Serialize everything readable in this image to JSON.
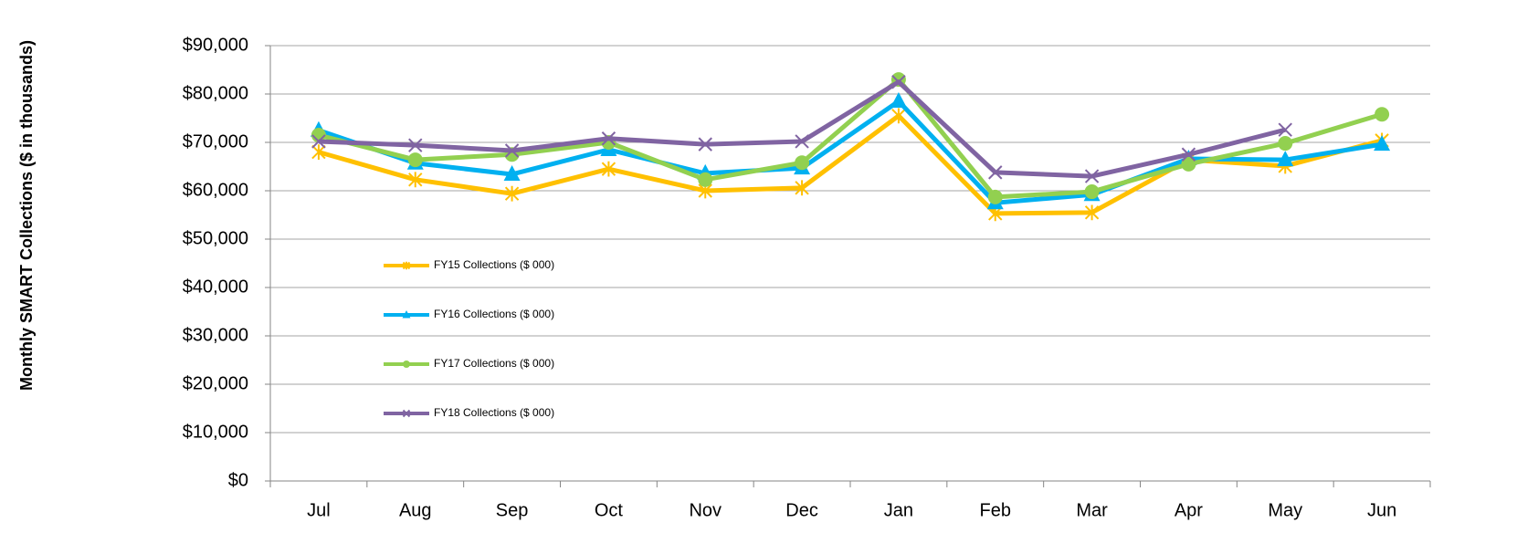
{
  "chart_data": {
    "type": "line",
    "y_axis_label": "Monthly SMART Collections ($ in thousands)",
    "categories": [
      "Jul",
      "Aug",
      "Sep",
      "Oct",
      "Nov",
      "Dec",
      "Jan",
      "Feb",
      "Mar",
      "Apr",
      "May",
      "Jun"
    ],
    "series": [
      {
        "name": "FY15 Collections ($ 000)",
        "color": "#FFC000",
        "marker": "asterisk",
        "values": [
          68000,
          62300,
          59400,
          64500,
          60000,
          60600,
          75500,
          55300,
          55500,
          66400,
          65100,
          70400
        ]
      },
      {
        "name": "FY16 Collections ($ 000)",
        "color": "#00B0F0",
        "marker": "triangle",
        "values": [
          72500,
          65700,
          63400,
          68500,
          63600,
          64700,
          78500,
          57500,
          59200,
          66600,
          66400,
          69600
        ]
      },
      {
        "name": "FY17 Collections ($ 000)",
        "color": "#92D050",
        "marker": "circle",
        "values": [
          71500,
          66400,
          67500,
          70000,
          62300,
          65800,
          83000,
          58700,
          59800,
          65500,
          69800,
          75800
        ]
      },
      {
        "name": "FY18 Collections ($ 000)",
        "color": "#8064A2",
        "marker": "x",
        "values": [
          70200,
          69400,
          68300,
          70800,
          69600,
          70200,
          82500,
          63800,
          63000,
          67500,
          72600,
          null
        ]
      }
    ],
    "ylim": [
      0,
      90000
    ],
    "yticks": [
      {
        "value": 0,
        "label": "$0"
      },
      {
        "value": 10000,
        "label": "$10,000"
      },
      {
        "value": 20000,
        "label": "$20,000"
      },
      {
        "value": 30000,
        "label": "$30,000"
      },
      {
        "value": 40000,
        "label": "$40,000"
      },
      {
        "value": 50000,
        "label": "$50,000"
      },
      {
        "value": 60000,
        "label": "$60,000"
      },
      {
        "value": 70000,
        "label": "$70,000"
      },
      {
        "value": 80000,
        "label": "$80,000"
      },
      {
        "value": 90000,
        "label": "$90,000"
      }
    ],
    "grid": true
  }
}
